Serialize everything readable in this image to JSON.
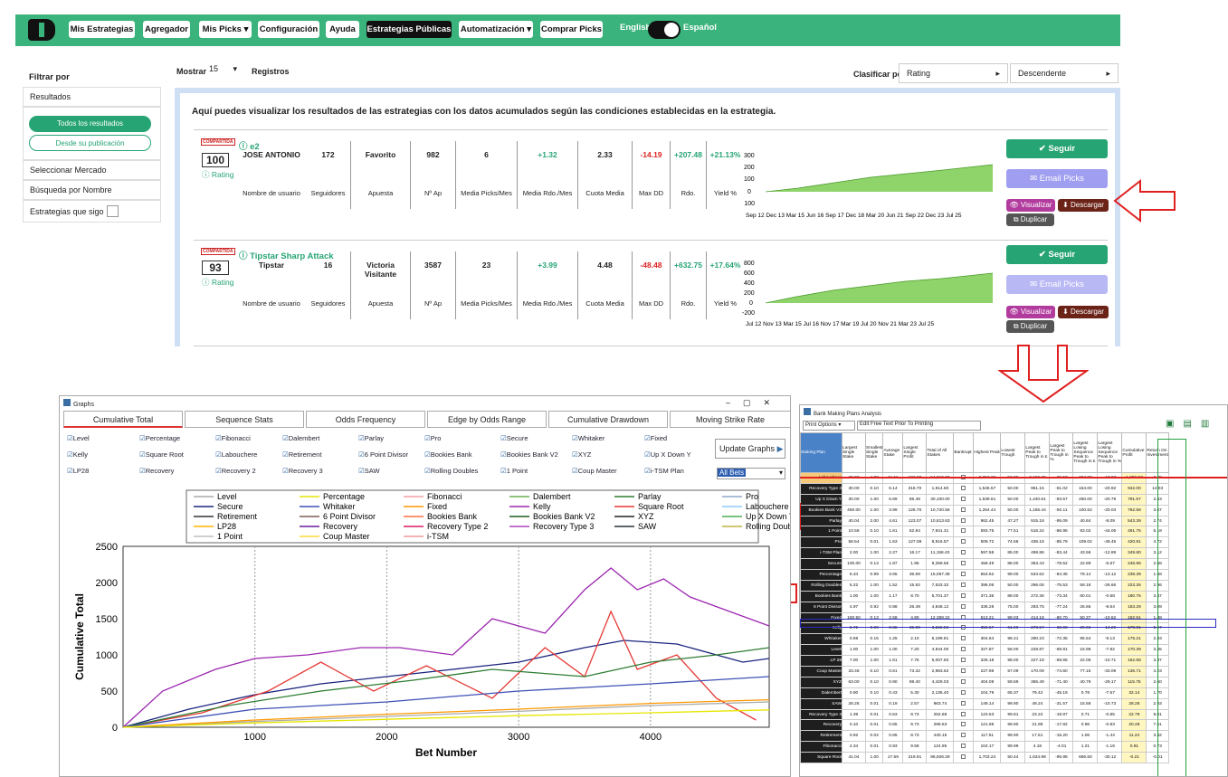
{
  "nav": {
    "items": [
      "Mis Estrategias",
      "Agregador",
      "Mis Picks ▾",
      "Configuración",
      "Ayuda",
      "Estrategias Públicas",
      "Automatización ▾",
      "Comprar Picks"
    ],
    "lang_left": "English",
    "lang_right": "Español"
  },
  "sidebar": {
    "title": "Filtrar por",
    "results": "Resultados",
    "all": "Todos los resultados",
    "since": "Desde su publicación",
    "market": "Seleccionar Mercado",
    "search": "Búsqueda por Nombre",
    "following": "Estrategias que sigo"
  },
  "top": {
    "show": "Mostrar",
    "count": "15",
    "records": "Registros",
    "sort_by": "Clasificar por",
    "sort_field": "Rating",
    "sort_dir": "Descendente"
  },
  "intro": "Aquí puedes visualizar los resultados de las estrategias con los datos acumulados según las condiciones establecidas en la estrategia.",
  "labels": {
    "user": "Nombre de usuario",
    "followers": "Seguidores",
    "bet": "Apuesta",
    "nap": "Nº Ap",
    "picks": "Media Picks/Mes",
    "rdo_mes": "Media Rdo./Mes",
    "odds": "Cuota Media",
    "maxdd": "Max DD",
    "rdo": "Rdo.",
    "yield": "Yield %",
    "badge": "COMPARTIDA",
    "rating": "Rating",
    "follow": "Seguir",
    "email": "Email Picks",
    "view": "Visualizar",
    "download": "Descargar",
    "dup": "Duplicar"
  },
  "cards": [
    {
      "name": "e2",
      "rating": "100",
      "user": "JOSE ANTONIO",
      "followers": "172",
      "bet": "Favorito",
      "nap": "982",
      "picks": "6",
      "rdo_mes": "+1.32",
      "odds": "2.33",
      "maxdd": "-14.19",
      "rdo": "+207.48",
      "yield": "+21.13%",
      "yticks": [
        "300",
        "200",
        "100",
        "0",
        "-100"
      ],
      "xticks": "Sep 12 Dec 13 Mar 15 Jun 16 Sep 17 Dec 18 Mar 20 Jun 21 Sep 22 Dec 23     Jul 25"
    },
    {
      "name": "Tipstar Sharp Attack",
      "rating": "93",
      "user": "Tipstar",
      "followers": "16",
      "bet": "Victoria Visitante",
      "nap": "3587",
      "picks": "23",
      "rdo_mes": "+3.99",
      "odds": "4.48",
      "maxdd": "-48.48",
      "rdo": "+632.75",
      "yield": "+17.64%",
      "yticks": [
        "800",
        "600",
        "400",
        "200",
        "0",
        "-200"
      ],
      "xticks": "Jul 12  Nov 13 Mar 15  Jul 16  Nov 17 Mar 19  Jul 20  Nov 21 Mar 23        Jul 25"
    }
  ],
  "graphs": {
    "title": "Graphs",
    "tabs": [
      "Cumulative Total",
      "Sequence Stats",
      "Odds Frequency",
      "Edge by Odds Range",
      "Cumulative Drawdown",
      "Moving Strike Rate"
    ],
    "checks": [
      "Level",
      "Percentage",
      "Fibonacci",
      "Dalembert",
      "Parlay",
      "Pro",
      "Secure",
      "Whitaker",
      "Fixed",
      "Kelly",
      "Square Root",
      "Labouchere",
      "Retirement",
      "6 Point Divisor",
      "Bookies Bank",
      "Bookies Bank V2",
      "XYZ",
      "Up X Down Y",
      "LP28",
      "Recovery",
      "Recovery 2",
      "Recovery 3",
      "SAW",
      "Rolling Doubles",
      "1 Point",
      "Coup Master",
      "i-TSM Plan"
    ],
    "update": "Update Graphs",
    "bets": "All Bets",
    "legend": [
      "Level",
      "Percentage",
      "Fibonacci",
      "Dalembert",
      "Parlay",
      "Pro",
      "Secure",
      "Whitaker",
      "Fixed",
      "Kelly",
      "Square Root",
      "Labouchere",
      "Retirement",
      "6 Point Divisor",
      "Bookies Bank",
      "Bookies Bank V2",
      "XYZ",
      "Up X Down Y",
      "LP28",
      "Recovery",
      "Recovery Type 2",
      "Recovery Type 3",
      "SAW",
      "Rolling Doubles",
      "1 Point",
      "Coup Master",
      "i-TSM"
    ],
    "legend_colors": [
      "#aaaaaa",
      "#e6e600",
      "#f4a0a0",
      "#6ab04c",
      "#2e7d32",
      "#8fa8c8",
      "#1a237e",
      "#3f51b5",
      "#ff9800",
      "#9c27b0",
      "#e53935",
      "#90caf9",
      "#333333",
      "#7b5e57",
      "#ff7043",
      "#1b5e20",
      "#212121",
      "#4caf50",
      "#ffb300",
      "#6a1b9a",
      "#d81b60",
      "#ab47bc",
      "#263238",
      "#bfb640",
      "#bdbdbd",
      "#fdd835",
      "#ef9a9a"
    ]
  },
  "chart_data": {
    "type": "line",
    "title": "",
    "xlabel": "Bet Number",
    "ylabel": "Cumulative Total",
    "xlim": [
      0,
      4900
    ],
    "ylim": [
      0,
      2500
    ],
    "xticks": [
      1000,
      2000,
      3000,
      4000
    ],
    "yticks": [
      0,
      500,
      1000,
      1500,
      2000,
      2500
    ],
    "series": [
      {
        "name": "Recovery Type 3",
        "color": "#9c27b0",
        "x": [
          0,
          300,
          700,
          1000,
          1400,
          1800,
          2100,
          2500,
          2800,
          3200,
          3500,
          3700,
          3900,
          4100,
          4300,
          4600,
          4900
        ],
        "y": [
          0,
          500,
          800,
          950,
          1000,
          1100,
          1100,
          1000,
          1500,
          1300,
          1900,
          2200,
          1900,
          2050,
          1800,
          1600,
          1400
        ]
      },
      {
        "name": "Secure",
        "color": "#1a237e",
        "x": [
          0,
          500,
          1000,
          1500,
          2000,
          2500,
          3000,
          3500,
          3800,
          4200,
          4500,
          4700,
          4900
        ],
        "y": [
          0,
          250,
          450,
          600,
          700,
          800,
          900,
          1100,
          1200,
          1150,
          1000,
          900,
          950
        ]
      },
      {
        "name": "Square Root",
        "color": "#e53935",
        "x": [
          0,
          600,
          1100,
          1500,
          1900,
          2300,
          2800,
          3200,
          3500,
          3700,
          3900,
          4200,
          4500,
          4800
        ],
        "y": [
          0,
          200,
          500,
          900,
          500,
          850,
          400,
          1100,
          700,
          1600,
          800,
          1000,
          400,
          100
        ]
      },
      {
        "name": "Parlay",
        "color": "#2e7d32",
        "x": [
          0,
          800,
          1500,
          2200,
          2800,
          3500,
          4000,
          4500,
          4900
        ],
        "y": [
          0,
          300,
          500,
          650,
          800,
          700,
          900,
          1000,
          1100
        ]
      },
      {
        "name": "Whitaker",
        "color": "#3f51b5",
        "x": [
          0,
          1000,
          2000,
          3000,
          4000,
          4900
        ],
        "y": [
          0,
          250,
          350,
          500,
          600,
          700
        ]
      },
      {
        "name": "Level",
        "color": "#aaaaaa",
        "x": [
          0,
          1000,
          2000,
          3000,
          4000,
          4900
        ],
        "y": [
          0,
          80,
          150,
          220,
          300,
          350
        ]
      },
      {
        "name": "Fixed",
        "color": "#ff9800",
        "x": [
          0,
          1000,
          2000,
          3000,
          4000,
          4900
        ],
        "y": [
          0,
          100,
          180,
          250,
          330,
          380
        ]
      },
      {
        "name": "Percentage",
        "color": "#e6e600",
        "x": [
          0,
          1000,
          2000,
          3000,
          4000,
          4900
        ],
        "y": [
          0,
          60,
          110,
          160,
          200,
          240
        ]
      }
    ]
  },
  "sheet": {
    "title": "Bank Making Plans Analysis",
    "print": "Print Options ▾",
    "edit": "Edit Free Text Prior To Printing",
    "headers": [
      "Staking Plan",
      "Largest Single Stake",
      "Smallest Single Stake",
      "Average Stake",
      "Largest Single Profit",
      "Total of All Stakes",
      "Bankrupt",
      "Highest Peak",
      "Lowest Trough",
      "Largest Peak to Trough in £",
      "Largest Peak to Trough in %",
      "Largest Losing Sequence Peak to Trough in £",
      "Largest Losing Sequence Peak to Trough in %",
      "Cumulative Profit",
      "Return On Investment"
    ],
    "rows": [
      [
        "Labouchere",
        "20.00",
        "4.00",
        "11.11",
        "102.00",
        "54,019.00",
        "",
        "2,252.29",
        "50.00",
        "2,150.29",
        "-95.57",
        "204.00",
        "-17.97",
        "1,292.93",
        "2.39"
      ],
      [
        "Recovery Type 3",
        "30.00",
        "0.10",
        "6.14",
        "316.70",
        "1,914.60",
        "",
        "1,545.57",
        "50.00",
        "951.15",
        "-61.02",
        "164.00",
        "-20.92",
        "942.00",
        "14.03"
      ],
      [
        "Up X Down Y",
        "30.00",
        "1.00",
        "6.69",
        "85.48",
        "30,100.00",
        "",
        "1,539.61",
        "50.00",
        "1,440.61",
        "-93.57",
        "260.00",
        "-20.79",
        "791.57",
        "2.63"
      ],
      [
        "Bookies Bank V2",
        "450.00",
        "1.00",
        "3.99",
        "126.70",
        "10,720.56",
        "",
        "1,254.44",
        "50.00",
        "1,155.44",
        "-92.11",
        "100.62",
        "-20.03",
        "762.58",
        "3.67"
      ],
      [
        "Parlay",
        "40.04",
        "2.00",
        "4.61",
        "123.07",
        "10,813.63",
        "",
        "962.45",
        "47.27",
        "915.18",
        "-95.09",
        "40.84",
        "-8.09",
        "543.39",
        "2.74"
      ],
      [
        "1 Point",
        "10.58",
        "0.10",
        "1.61",
        "52.84",
        "7,941.31",
        "",
        "593.75",
        "77.51",
        "516.24",
        "-86.95",
        "93.02",
        "-44.05",
        "491.75",
        "6.19"
      ],
      [
        "Pro",
        "58.54",
        "0.01",
        "1.63",
        "127.08",
        "8,916.57",
        "",
        "509.72",
        "74.56",
        "436.16",
        "-85.79",
        "109.02",
        "-49.45",
        "420.81",
        "4.72"
      ],
      [
        "i-TSM Plan",
        "2.00",
        "1.00",
        "2.27",
        "16.17",
        "11,158.40",
        "",
        "597.58",
        "85.00",
        "498.86",
        "-83.44",
        "43.56",
        "-12.89",
        "349.80",
        "3.12"
      ],
      [
        "Secure",
        "100.00",
        "0.13",
        "1.87",
        "1.96",
        "9,259.56",
        "",
        "458.49",
        "88.00",
        "353.43",
        "-78.52",
        "22.89",
        "-5.67",
        "246.96",
        "2.68"
      ],
      [
        "Percentage",
        "6.34",
        "0.99",
        "3.65",
        "36.59",
        "15,067.38",
        "",
        "653.62",
        "99.00",
        "534.62",
        "-84.35",
        "79.14",
        "-13.12",
        "238.39",
        "1.58"
      ],
      [
        "Rolling Doubles",
        "5.22",
        "1.00",
        "1.52",
        "15.92",
        "7,533.32",
        "",
        "396.06",
        "50.00",
        "296.06",
        "-75.53",
        "59.18",
        "-26.66",
        "223.26",
        "2.96"
      ],
      [
        "Bookies Bank",
        "1.00",
        "1.00",
        "1.17",
        "8.70",
        "5,701.37",
        "",
        "371.36",
        "88.00",
        "272.36",
        "-73.34",
        "60.01",
        "-0.58",
        "180.75",
        "3.47"
      ],
      [
        "6 Point Divisor",
        "4.97",
        "0.92",
        "0.98",
        "26.49",
        "4,848.12",
        "",
        "336.28",
        "75.00",
        "293.75",
        "-77.24",
        "26.65",
        "-9.64",
        "183.29",
        "3.09"
      ],
      [
        "Fixed",
        "150.50",
        "0.13",
        "2.58",
        "4.90",
        "12,359.22",
        "",
        "513.21",
        "99.03",
        "414.18",
        "-80.70",
        "50.37",
        "-10.52",
        "162.51",
        "1.48"
      ],
      [
        "Kelly",
        "5.72",
        "0.00",
        "0.65",
        "35.00",
        "3,222.56",
        "",
        "359.57",
        "61.00",
        "278.57",
        "-82.06",
        "20.66",
        "-14.29",
        "179.81",
        "5.57"
      ],
      [
        "Whitaker",
        "0.69",
        "0.15",
        "1.25",
        "2.10",
        "6,199.81",
        "",
        "304.64",
        "98.41",
        "290.23",
        "-72.35",
        "95.54",
        "-9.13",
        "175.21",
        "2.83"
      ],
      [
        "Level",
        "1.00",
        "1.00",
        "1.00",
        "7.20",
        "4,944.00",
        "",
        "327.87",
        "58.00",
        "228.87",
        "-69.81",
        "16.98",
        "-7.82",
        "170.39",
        "3.45"
      ],
      [
        "LP 28",
        "7.00",
        "1.00",
        "1.61",
        "7.76",
        "5,007.60",
        "",
        "326.18",
        "98.00",
        "227.18",
        "-69.65",
        "22.06",
        "-10.71",
        "162.68",
        "3.37"
      ],
      [
        "Coup Master",
        "33.48",
        "0.10",
        "0.61",
        "73.32",
        "2,983.62",
        "",
        "227.98",
        "57.09",
        "170.09",
        "-74.60",
        "77.15",
        "-33.09",
        "136.71",
        "4.23"
      ],
      [
        "XYZ",
        "63.00",
        "0.10",
        "0.90",
        "89.40",
        "4,429.03",
        "",
        "404.08",
        "59.59",
        "365.49",
        "-71.40",
        "40.79",
        "-29.17",
        "115.75",
        "2.60"
      ],
      [
        "Dalembert",
        "0.90",
        "0.10",
        "0.43",
        "5.30",
        "2,135.40",
        "",
        "104.79",
        "65.37",
        "79.42",
        "-45.19",
        "0.78",
        "-7.57",
        "32.14",
        "1.70"
      ],
      [
        "SAW",
        "28.26",
        "0.01",
        "0.19",
        "2.57",
        "963.74",
        "",
        "149.14",
        "99.90",
        "49.24",
        "-31.57",
        "15.58",
        "-10.73",
        "28.28",
        "2.93"
      ],
      [
        "Recovery Type 3",
        "1.39",
        "0.01",
        "0.63",
        "8.73",
        "252.68",
        "",
        "123.63",
        "99.81",
        "23.22",
        "-18.87",
        "0.71",
        "-0.85",
        "22.79",
        "9.01"
      ],
      [
        "Recovery",
        "0.10",
        "0.01",
        "0.65",
        "9.73",
        "289.63",
        "",
        "121.96",
        "99.90",
        "21.96",
        "-17.82",
        "0.96",
        "-0.83",
        "20.28",
        "7.51"
      ],
      [
        "Retirement",
        "0.92",
        "0.02",
        "0.65",
        "8.73",
        "440.15",
        "",
        "117.51",
        "99.90",
        "17.51",
        "-15.20",
        "1.06",
        "-1.44",
        "11.24",
        "3.42"
      ],
      [
        "Fibonacci",
        "2.34",
        "0.01",
        "0.93",
        "9.58",
        "124.95",
        "",
        "104.17",
        "99.99",
        "4.18",
        "-4.01",
        "1.21",
        "-1.16",
        "0.91",
        "0.73"
      ],
      [
        "Square Root",
        "41.04",
        "1.00",
        "17.59",
        "219.91",
        "86,926.29",
        "",
        "1,703.24",
        "50.44",
        "1,634.98",
        "-95.98",
        "666.60",
        "-30.12",
        "-0.21",
        "-0.01"
      ]
    ]
  },
  "colors": {
    "brand": "#3bb37c",
    "accent": "#27a474",
    "purple": "#9f9ef0",
    "red": "#d22"
  }
}
